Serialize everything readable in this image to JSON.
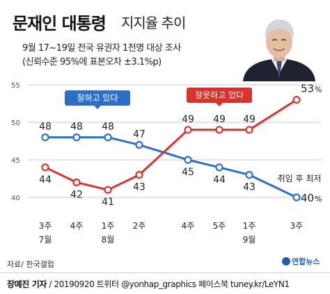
{
  "title": {
    "main": "문재인 대통령",
    "sub": "지지율 추이"
  },
  "subtitle": {
    "line1": "9월 17~19일 전국 유권자 1천명 대상 조사",
    "line2": "(신뢰수준 95%에 표본오차 ±3.1%p)"
  },
  "source": "자료/ 한국갤럽",
  "logo": "연합뉴스",
  "credit": {
    "author": "장예진 기자",
    "rest": " / 20190920 트위터 @yonhap_graphics  페이스북 tuney.kr/LeYN1"
  },
  "colors": {
    "approve": "#2d6fc4",
    "disapprove": "#d8322b",
    "grid": "#c8c8c8",
    "axis": "#888888"
  },
  "chart_data": {
    "type": "line",
    "categories": [
      "3주 7월",
      "4주",
      "1주 8월",
      "2주",
      "4주",
      "5주",
      "1주 9월",
      "3주"
    ],
    "x_labels": [
      {
        "week": "3주",
        "month": "7월"
      },
      {
        "week": "4주",
        "month": ""
      },
      {
        "week": "1주",
        "month": "8월"
      },
      {
        "week": "2주",
        "month": ""
      },
      {
        "week": "4주",
        "month": ""
      },
      {
        "week": "5주",
        "month": ""
      },
      {
        "week": "1주",
        "month": "9월"
      },
      {
        "week": "3주",
        "month": ""
      }
    ],
    "series": [
      {
        "name": "잘하고 있다",
        "color": "#2d6fc4",
        "values": [
          48,
          48,
          48,
          47,
          45,
          44,
          43,
          40
        ]
      },
      {
        "name": "잘못하고 있다",
        "color": "#d8322b",
        "values": [
          44,
          42,
          41,
          43,
          49,
          49,
          49,
          53
        ]
      }
    ],
    "ylim": [
      40,
      55
    ],
    "yticks": [
      40,
      45,
      50,
      55
    ],
    "grid": true,
    "annotations": [
      {
        "text": "취임 후 최저",
        "series": 0,
        "point": 7
      },
      {
        "text": "%",
        "series": 0,
        "point": 7
      },
      {
        "text": "%",
        "series": 1,
        "point": 7
      }
    ]
  }
}
